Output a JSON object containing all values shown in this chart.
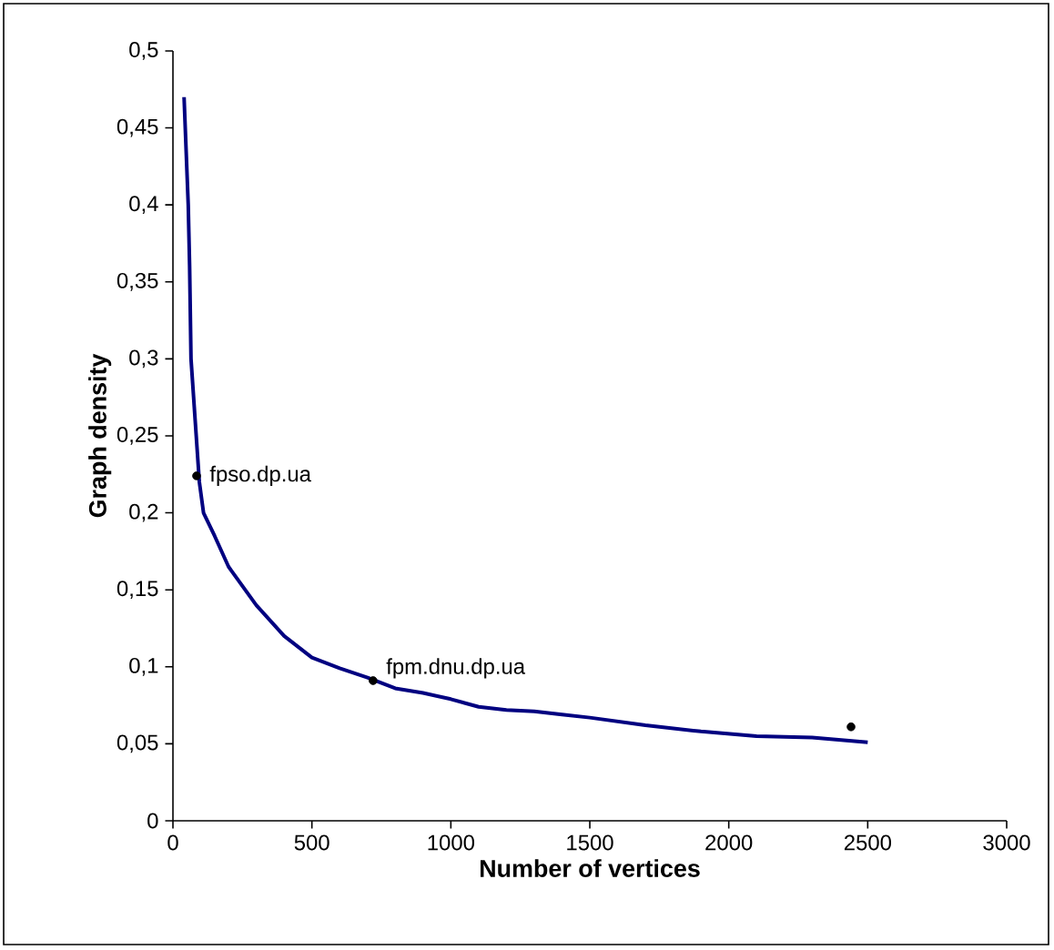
{
  "chart_data": {
    "type": "line",
    "xlabel": "Number of vertices",
    "ylabel": "Graph density",
    "xlim": [
      0,
      3000
    ],
    "xticks": [
      0,
      500,
      1000,
      1500,
      2000,
      2500,
      3000
    ],
    "ylim": [
      0,
      0.5
    ],
    "yticks": [
      0,
      {
        "value": 0.05,
        "label": "0,05"
      },
      {
        "value": 0.1,
        "label": "0,1"
      },
      {
        "value": 0.15,
        "label": "0,15"
      },
      {
        "value": 0.2,
        "label": "0,2"
      },
      {
        "value": 0.25,
        "label": "0,25"
      },
      {
        "value": 0.3,
        "label": "0,3"
      },
      {
        "value": 0.35,
        "label": "0,35"
      },
      {
        "value": 0.4,
        "label": "0,4"
      },
      {
        "value": 0.45,
        "label": "0,45"
      },
      {
        "value": 0.5,
        "label": "0,5"
      }
    ],
    "grid": false,
    "series": [
      {
        "color": "#000080",
        "marker": "none",
        "x": [
          40,
          55,
          60,
          65,
          80,
          95,
          110,
          150,
          200,
          300,
          400,
          500,
          600,
          700,
          800,
          900,
          1000,
          1100,
          1200,
          1300,
          1400,
          1500,
          1700,
          1900,
          2100,
          2300,
          2500
        ],
        "values": [
          0.47,
          0.4,
          0.36,
          0.3,
          0.26,
          0.22,
          0.2,
          0.185,
          0.165,
          0.14,
          0.12,
          0.106,
          0.099,
          0.093,
          0.086,
          0.083,
          0.079,
          0.074,
          0.072,
          0.071,
          0.069,
          0.067,
          0.062,
          0.058,
          0.055,
          0.054,
          0.051
        ]
      },
      {
        "type": "scatter",
        "color": "#000000",
        "marker": "circle",
        "x": [
          85,
          720,
          2440
        ],
        "values": [
          0.224,
          0.091,
          0.061
        ]
      }
    ],
    "annotations": [
      {
        "text": "fpso.dp.ua",
        "x": 85,
        "y": 0.224
      },
      {
        "text": "fpm.dnu.dp.ua",
        "x": 720,
        "y": 0.091
      }
    ]
  }
}
